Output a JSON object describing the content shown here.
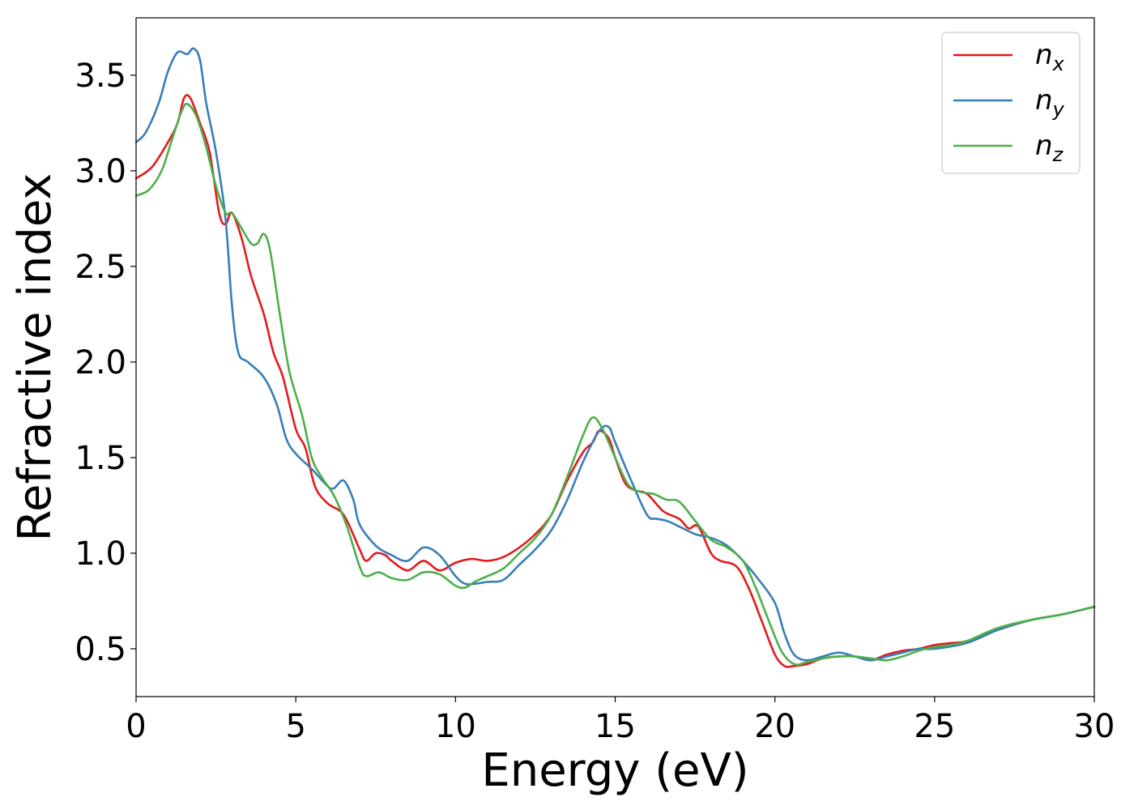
{
  "chart_data": {
    "type": "line",
    "xlabel": "Energy (eV)",
    "ylabel": "Refractive index",
    "xlim": [
      0,
      30
    ],
    "ylim": [
      0.25,
      3.8
    ],
    "xticks": [
      0,
      5,
      10,
      15,
      20,
      25,
      30
    ],
    "xtick_labels": [
      "0",
      "5",
      "10",
      "15",
      "20",
      "25",
      "30"
    ],
    "yticks": [
      0.5,
      1.0,
      1.5,
      2.0,
      2.5,
      3.0,
      3.5
    ],
    "ytick_labels": [
      "0.5",
      "1.0",
      "1.5",
      "2.0",
      "2.5",
      "3.0",
      "3.5"
    ],
    "grid": false,
    "legend_position": "top-right",
    "series": [
      {
        "name": "n",
        "subscript": "x",
        "color": "#e41a1c",
        "x": [
          0,
          0.5,
          1.0,
          1.3,
          1.5,
          1.7,
          2.0,
          2.3,
          2.6,
          2.8,
          3.0,
          3.3,
          3.6,
          4.0,
          4.3,
          4.6,
          5.0,
          5.3,
          5.6,
          6.0,
          6.5,
          7.0,
          7.2,
          7.5,
          7.8,
          8.0,
          8.5,
          9.0,
          9.5,
          10.0,
          10.5,
          11.0,
          11.5,
          12.0,
          12.5,
          13.0,
          13.5,
          14.0,
          14.3,
          14.5,
          14.8,
          15.0,
          15.3,
          15.6,
          16.0,
          16.5,
          17.0,
          17.3,
          17.6,
          18.0,
          18.3,
          18.8,
          19.2,
          19.6,
          20.0,
          20.3,
          20.6,
          21.0,
          21.5,
          22.0,
          22.5,
          23.0,
          23.5,
          24.0,
          24.5,
          25.0,
          25.5,
          26.0,
          27.0,
          28.0,
          29.0,
          30.0
        ],
        "values": [
          2.96,
          3.02,
          3.15,
          3.25,
          3.38,
          3.38,
          3.25,
          3.1,
          2.78,
          2.72,
          2.78,
          2.65,
          2.45,
          2.25,
          2.05,
          1.92,
          1.65,
          1.55,
          1.35,
          1.26,
          1.2,
          1.02,
          0.96,
          1.0,
          0.99,
          0.96,
          0.91,
          0.96,
          0.91,
          0.95,
          0.97,
          0.96,
          0.98,
          1.03,
          1.1,
          1.2,
          1.38,
          1.53,
          1.58,
          1.64,
          1.6,
          1.5,
          1.37,
          1.33,
          1.31,
          1.22,
          1.18,
          1.13,
          1.14,
          1.0,
          0.96,
          0.93,
          0.81,
          0.64,
          0.47,
          0.41,
          0.41,
          0.42,
          0.45,
          0.46,
          0.46,
          0.44,
          0.47,
          0.49,
          0.5,
          0.52,
          0.53,
          0.54,
          0.6,
          0.65,
          0.68,
          0.72
        ]
      },
      {
        "name": "n",
        "subscript": "y",
        "color": "#377eb8",
        "x": [
          0,
          0.3,
          0.7,
          1.0,
          1.3,
          1.6,
          1.8,
          2.0,
          2.2,
          2.5,
          2.8,
          3.0,
          3.2,
          3.5,
          4.0,
          4.4,
          4.7,
          5.0,
          5.5,
          6.0,
          6.2,
          6.5,
          6.8,
          7.0,
          7.5,
          8.0,
          8.5,
          9.0,
          9.5,
          10.0,
          10.3,
          10.6,
          11.0,
          11.5,
          12.0,
          12.5,
          13.0,
          13.5,
          14.0,
          14.5,
          14.8,
          15.0,
          15.5,
          16.0,
          16.3,
          16.6,
          17.0,
          17.5,
          18.0,
          18.5,
          19.0,
          19.5,
          20.0,
          20.3,
          20.6,
          21.0,
          21.5,
          22.0,
          22.5,
          23.0,
          23.5,
          24.0,
          24.5,
          25.0,
          26.0,
          27.0,
          28.0,
          29.0,
          30.0
        ],
        "values": [
          3.15,
          3.2,
          3.35,
          3.52,
          3.62,
          3.61,
          3.64,
          3.58,
          3.35,
          3.1,
          2.75,
          2.3,
          2.05,
          2.0,
          1.92,
          1.78,
          1.6,
          1.52,
          1.44,
          1.35,
          1.34,
          1.38,
          1.28,
          1.15,
          1.04,
          0.99,
          0.96,
          1.03,
          0.99,
          0.88,
          0.84,
          0.84,
          0.85,
          0.86,
          0.94,
          1.02,
          1.12,
          1.28,
          1.48,
          1.64,
          1.66,
          1.58,
          1.38,
          1.2,
          1.18,
          1.17,
          1.14,
          1.1,
          1.08,
          1.04,
          0.96,
          0.86,
          0.74,
          0.58,
          0.47,
          0.44,
          0.46,
          0.48,
          0.46,
          0.44,
          0.46,
          0.48,
          0.5,
          0.5,
          0.53,
          0.6,
          0.65,
          0.68,
          0.72
        ]
      },
      {
        "name": "n",
        "subscript": "z",
        "color": "#4daf4a",
        "x": [
          0,
          0.4,
          0.8,
          1.1,
          1.4,
          1.6,
          1.9,
          2.2,
          2.5,
          2.8,
          3.0,
          3.3,
          3.6,
          3.8,
          4.0,
          4.2,
          4.5,
          4.8,
          5.2,
          5.5,
          5.8,
          6.2,
          6.6,
          7.0,
          7.2,
          7.6,
          8.0,
          8.5,
          9.0,
          9.5,
          10.0,
          10.3,
          10.6,
          11.0,
          11.5,
          12.0,
          12.5,
          13.0,
          13.5,
          14.0,
          14.3,
          14.6,
          15.0,
          15.4,
          15.8,
          16.2,
          16.6,
          17.0,
          17.5,
          18.0,
          18.5,
          19.0,
          19.4,
          19.8,
          20.2,
          20.6,
          21.0,
          21.5,
          22.0,
          22.5,
          23.0,
          23.5,
          24.0,
          24.5,
          25.0,
          25.5,
          26.0,
          27.0,
          28.0,
          29.0,
          30.0
        ],
        "values": [
          2.87,
          2.9,
          3.0,
          3.15,
          3.3,
          3.35,
          3.28,
          3.12,
          2.92,
          2.78,
          2.78,
          2.7,
          2.62,
          2.62,
          2.67,
          2.58,
          2.25,
          1.95,
          1.72,
          1.5,
          1.4,
          1.3,
          1.14,
          0.93,
          0.88,
          0.9,
          0.87,
          0.86,
          0.9,
          0.89,
          0.83,
          0.82,
          0.85,
          0.88,
          0.92,
          1.0,
          1.08,
          1.2,
          1.4,
          1.62,
          1.71,
          1.65,
          1.5,
          1.36,
          1.32,
          1.31,
          1.28,
          1.27,
          1.17,
          1.07,
          1.03,
          0.96,
          0.82,
          0.65,
          0.49,
          0.42,
          0.43,
          0.45,
          0.46,
          0.46,
          0.45,
          0.44,
          0.46,
          0.49,
          0.51,
          0.52,
          0.54,
          0.61,
          0.65,
          0.68,
          0.72
        ]
      }
    ]
  }
}
